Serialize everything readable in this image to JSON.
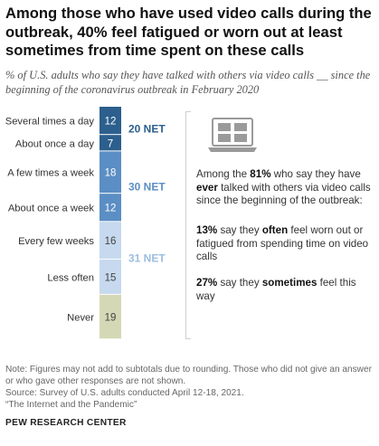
{
  "title": "Among those who have used video calls during the outbreak, 40% feel fatigued or worn out at least sometimes from time spent on these calls",
  "subtitle": "% of U.S. adults who say they have talked with others via video calls __ since the beginning of the coronavirus outbreak in February 2020",
  "chart_data": {
    "type": "bar",
    "orientation": "stacked-vertical",
    "categories": [
      "Several times a day",
      "About once a day",
      "A few times a week",
      "About once a week",
      "Every few weeks",
      "Less often",
      "Never"
    ],
    "values": [
      12,
      7,
      18,
      12,
      16,
      15,
      19
    ],
    "colors": [
      "#2c5f8d",
      "#2c5f8d",
      "#5b8ec4",
      "#5b8ec4",
      "#c6d9ee",
      "#c6d9ee",
      "#d5d8b5"
    ],
    "value_colors": [
      "#ffffff",
      "#ffffff",
      "#ffffff",
      "#ffffff",
      "#444444",
      "#444444",
      "#444444"
    ],
    "nets": [
      {
        "label": "20 NET",
        "value": 20,
        "from": 0,
        "to": 1,
        "color": "#2c5f8d"
      },
      {
        "label": "30 NET",
        "value": 30,
        "from": 2,
        "to": 3,
        "color": "#5b8ec4"
      },
      {
        "label": "31 NET",
        "value": 31,
        "from": 4,
        "to": 5,
        "color": "#9dbde0"
      }
    ]
  },
  "annotation": {
    "intro_pre": "Among the ",
    "intro_pct": "81%",
    "intro_mid": " who say they have ",
    "intro_ever": "ever",
    "intro_post": " talked with others via video calls since the beginning of the outbreak:",
    "often_pct": "13%",
    "often_mid": " say they ",
    "often_word": "often",
    "often_post": " feel worn out or fatigued from spending time on video calls",
    "some_pct": "27%",
    "some_mid": " say they ",
    "some_word": "sometimes",
    "some_post": " feel this way"
  },
  "icon": "laptop-video-call-icon",
  "note_lines": [
    "Note: Figures may not add to subtotals due to rounding. Those who did not give an answer or who gave other responses are not shown.",
    "Source: Survey of U.S. adults conducted April 12-18, 2021.",
    "“The Internet and the Pandemic”"
  ],
  "logo": "PEW RESEARCH CENTER"
}
